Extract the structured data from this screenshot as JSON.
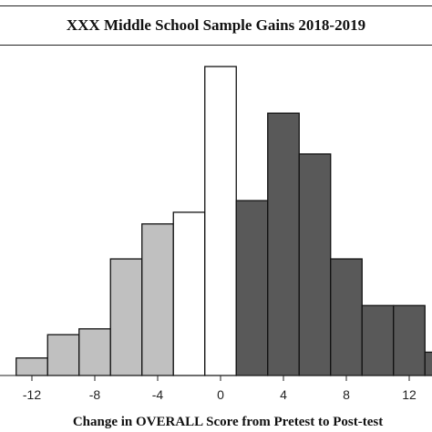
{
  "chart_data": {
    "type": "bar",
    "title": "XXX  Middle School Sample Gains 2018-2019",
    "xlabel": "Change in OVERALL Score from Pretest to Post-test",
    "ylabel": "",
    "xlim": [
      -14,
      14
    ],
    "xticks": [
      -12,
      -8,
      -4,
      0,
      4,
      8,
      12
    ],
    "grid": false,
    "bins": [
      {
        "x0": -13,
        "x1": -11,
        "value": 3,
        "color": "#c0c0c0"
      },
      {
        "x0": -11,
        "x1": -9,
        "value": 7,
        "color": "#c0c0c0"
      },
      {
        "x0": -9,
        "x1": -7,
        "value": 8,
        "color": "#c0c0c0"
      },
      {
        "x0": -7,
        "x1": -5,
        "value": 20,
        "color": "#c0c0c0"
      },
      {
        "x0": -5,
        "x1": -3,
        "value": 26,
        "color": "#c0c0c0"
      },
      {
        "x0": -3,
        "x1": -1,
        "value": 28,
        "color": "#ffffff"
      },
      {
        "x0": -1,
        "x1": 1,
        "value": 53,
        "color": "#ffffff"
      },
      {
        "x0": 1,
        "x1": 3,
        "value": 30,
        "color": "#595959"
      },
      {
        "x0": 3,
        "x1": 5,
        "value": 45,
        "color": "#595959"
      },
      {
        "x0": 5,
        "x1": 7,
        "value": 38,
        "color": "#595959"
      },
      {
        "x0": 7,
        "x1": 9,
        "value": 20,
        "color": "#595959"
      },
      {
        "x0": 9,
        "x1": 11,
        "value": 12,
        "color": "#595959"
      },
      {
        "x0": 11,
        "x1": 13,
        "value": 12,
        "color": "#595959"
      },
      {
        "x0": 13,
        "x1": 15,
        "value": 4,
        "color": "#595959"
      }
    ],
    "ylim": [
      0,
      53
    ]
  }
}
